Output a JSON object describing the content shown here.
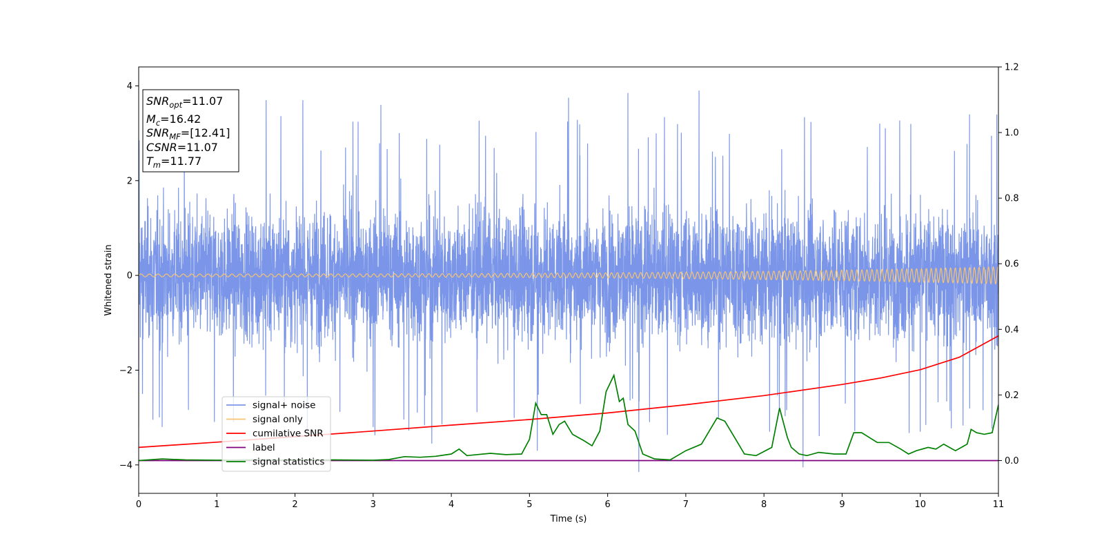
{
  "chart_data": {
    "type": "line",
    "title": "",
    "xlabel": "Time (s)",
    "ylabel": "Whitened strain",
    "y2label": "",
    "xlim": [
      0,
      11
    ],
    "ylim": [
      -4.6,
      4.4
    ],
    "y2lim": [
      -0.1,
      1.2
    ],
    "xticks": [
      "0",
      "1",
      "2",
      "3",
      "4",
      "5",
      "6",
      "7",
      "8",
      "9",
      "10",
      "11"
    ],
    "yticks": [
      "4",
      "2",
      "0",
      "−2",
      "−4"
    ],
    "y2ticks": [
      "1.2",
      "1.0",
      "0.8",
      "0.6",
      "0.4",
      "0.2",
      "0.0"
    ],
    "legend_position": "lower-left",
    "grid": false,
    "series": [
      {
        "name": "signal+ noise",
        "axis": "left",
        "color": "#7b96e8",
        "description_values": {
          "typical_range": [
            -2.2,
            2.2
          ],
          "max": 3.9,
          "min": -4.15,
          "peaks": [
            [
              1.63,
              3.7
            ],
            [
              2.1,
              3.7
            ],
            [
              3.1,
              3.6
            ],
            [
              5.5,
              3.75
            ],
            [
              6.26,
              3.85
            ],
            [
              7.17,
              3.9
            ],
            [
              8.5,
              3.7
            ],
            [
              10.63,
              3.4
            ]
          ],
          "troughs": [
            [
              0.0,
              -3.2
            ],
            [
              0.3,
              -3.2
            ],
            [
              3.0,
              -3.2
            ],
            [
              3.75,
              -3.55
            ],
            [
              5.1,
              -3.7
            ],
            [
              6.4,
              -4.15
            ],
            [
              8.5,
              -4.05
            ],
            [
              10.0,
              -3.3
            ]
          ]
        }
      },
      {
        "name": "signal only",
        "axis": "left",
        "color": "#f8c471",
        "amplitude_start": 0.03,
        "amplitude_end": 0.18
      },
      {
        "name": "cumilative SNR",
        "axis": "right",
        "color": "#ff0000",
        "x": [
          0,
          1,
          2,
          3,
          4,
          5,
          6,
          7,
          8,
          9,
          9.5,
          10,
          10.5,
          11
        ],
        "values": [
          0.04,
          0.056,
          0.073,
          0.09,
          0.108,
          0.125,
          0.145,
          0.17,
          0.198,
          0.232,
          0.252,
          0.277,
          0.315,
          0.38
        ]
      },
      {
        "name": "label",
        "axis": "right",
        "color": "#800080",
        "x": [
          0,
          11
        ],
        "values": [
          0.0,
          0.0
        ]
      },
      {
        "name": "signal statistics",
        "axis": "right",
        "color": "#008000",
        "x": [
          0,
          0.3,
          0.6,
          1,
          1.5,
          2,
          2.5,
          3,
          3.2,
          3.4,
          3.6,
          3.8,
          4.0,
          4.1,
          4.2,
          4.5,
          4.7,
          4.9,
          5.0,
          5.08,
          5.15,
          5.22,
          5.3,
          5.38,
          5.45,
          5.55,
          5.7,
          5.8,
          5.9,
          5.98,
          6.08,
          6.15,
          6.2,
          6.26,
          6.35,
          6.45,
          6.6,
          6.8,
          7.0,
          7.2,
          7.4,
          7.5,
          7.6,
          7.75,
          7.9,
          8.1,
          8.2,
          8.3,
          8.35,
          8.45,
          8.55,
          8.7,
          8.9,
          9.05,
          9.15,
          9.25,
          9.35,
          9.45,
          9.6,
          9.75,
          9.85,
          9.95,
          10.1,
          10.2,
          10.3,
          10.45,
          10.6,
          10.65,
          10.72,
          10.82,
          10.92,
          11
        ],
        "values": [
          0.0,
          0.005,
          0.002,
          0.001,
          0.002,
          0.001,
          0.002,
          0.001,
          0.003,
          0.012,
          0.01,
          0.013,
          0.02,
          0.035,
          0.015,
          0.022,
          0.018,
          0.02,
          0.065,
          0.175,
          0.14,
          0.14,
          0.08,
          0.11,
          0.12,
          0.08,
          0.06,
          0.045,
          0.09,
          0.21,
          0.26,
          0.18,
          0.19,
          0.11,
          0.09,
          0.02,
          0.005,
          0.002,
          0.03,
          0.05,
          0.13,
          0.12,
          0.08,
          0.02,
          0.015,
          0.04,
          0.16,
          0.07,
          0.04,
          0.02,
          0.015,
          0.025,
          0.02,
          0.02,
          0.085,
          0.085,
          0.07,
          0.055,
          0.055,
          0.035,
          0.02,
          0.03,
          0.04,
          0.035,
          0.05,
          0.03,
          0.05,
          0.095,
          0.085,
          0.08,
          0.085,
          0.17
        ]
      }
    ],
    "annotation": {
      "lines": [
        {
          "main": "SNR",
          "sub": "opt",
          "rest": "=11.07",
          "italic": true
        },
        {
          "main": "M",
          "sub": "c",
          "rest": "=16.42",
          "italic": true
        },
        {
          "main": "SNR",
          "sub": "MF",
          "rest": "=[12.41]",
          "italic": true
        },
        {
          "main": "CSNR",
          "sub": "",
          "rest": "=11.07",
          "italic": true
        },
        {
          "main": "T",
          "sub": "m",
          "rest": "=11.77",
          "italic": true
        }
      ]
    }
  }
}
